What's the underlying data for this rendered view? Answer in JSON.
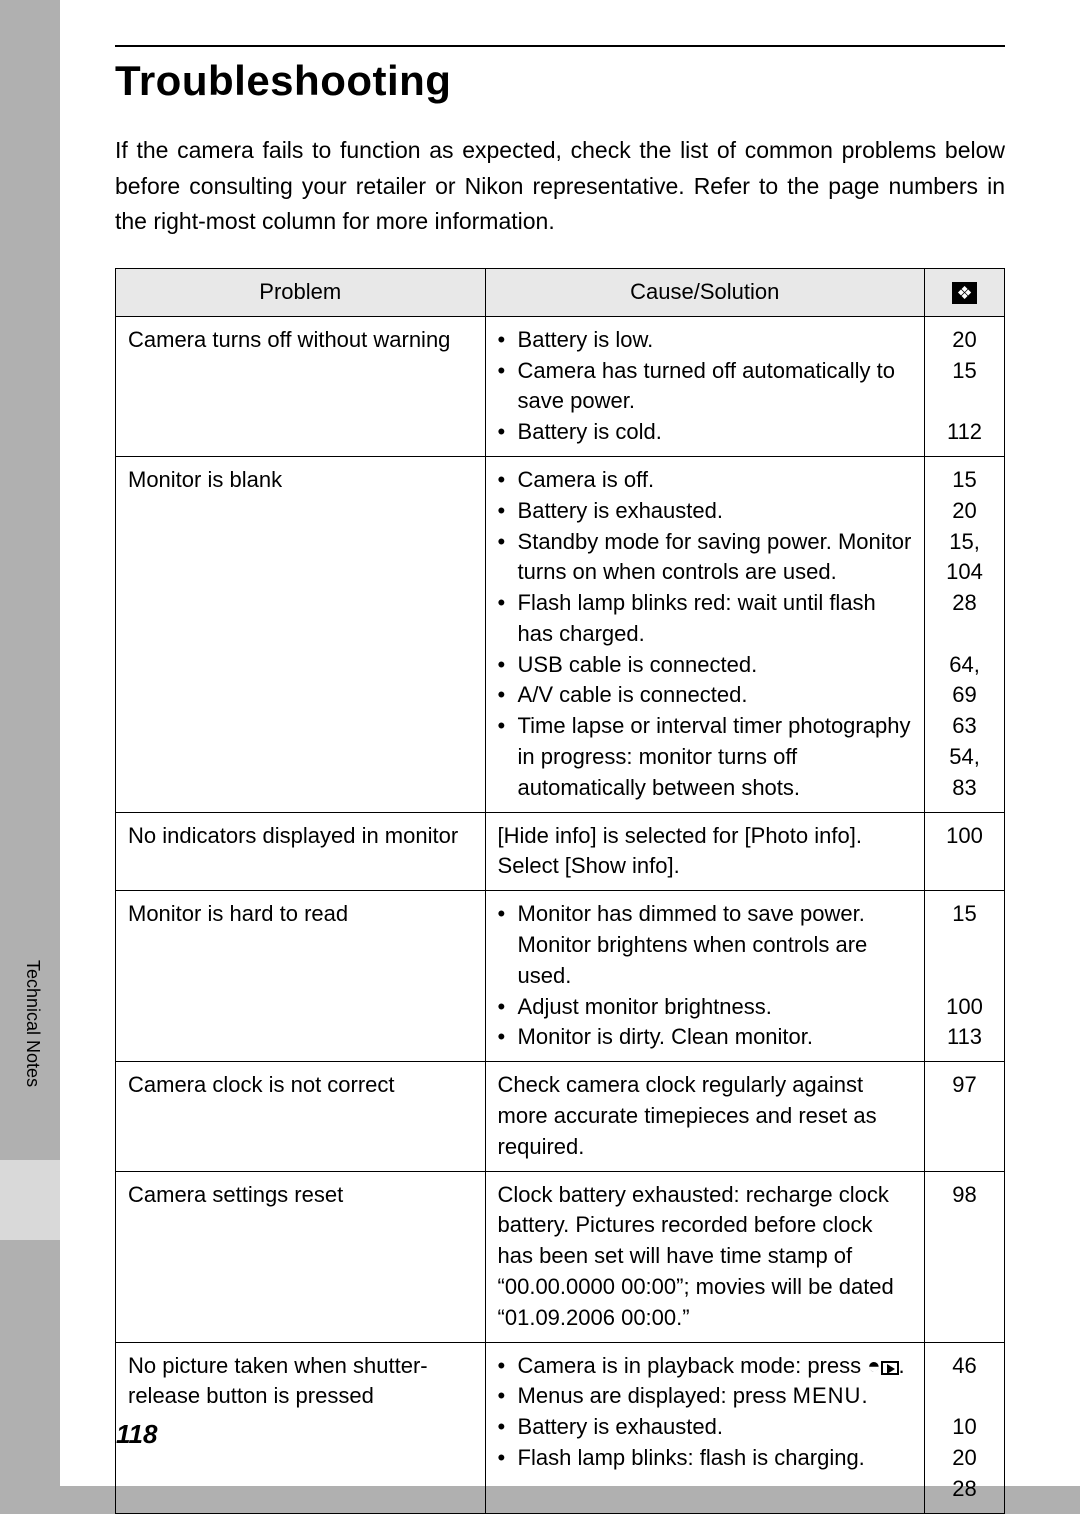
{
  "background_color": "#b0b0b0",
  "page_color": "#ffffff",
  "heading": "Troubleshooting",
  "intro": "If the camera fails to function as expected, check the list of common problems below before consulting your retailer or Nikon representative. Refer to the page numbers in the right-most column for more information.",
  "side_label": "Technical Notes",
  "page_number": "118",
  "table": {
    "header_bg": "#e8e8e8",
    "border_color": "#000000",
    "columns": {
      "problem": "Problem",
      "cause": "Cause/Solution",
      "ref_icon": "⬚"
    },
    "rows": [
      {
        "problem": "Camera turns off without warning",
        "cause_type": "list",
        "cause": [
          "Battery is low.",
          "Camera has turned off automatically to save power.",
          "Battery is cold."
        ],
        "ref": "20\n15\n\n112"
      },
      {
        "problem": "Monitor is blank",
        "cause_type": "list",
        "cause": [
          "Camera is off.",
          "Battery is exhausted.",
          "Standby mode for saving power. Monitor turns on when controls are used.",
          "Flash lamp blinks red: wait until flash has charged.",
          "USB cable is connected.",
          "A/V cable is connected.",
          "Time lapse or interval timer photography in progress: monitor turns off automatically between shots."
        ],
        "ref": "15\n20\n15,\n104\n28\n\n64, 69\n63\n54, 83"
      },
      {
        "problem": "No indicators displayed in monitor",
        "cause_type": "text",
        "cause": "[Hide info] is selected for [Photo info]. Select [Show info].",
        "ref": "100"
      },
      {
        "problem": "Monitor is hard to read",
        "cause_type": "list",
        "cause": [
          "Monitor has dimmed to save power. Monitor brightens when controls are used.",
          "Adjust monitor brightness.",
          "Monitor is dirty. Clean monitor."
        ],
        "ref": "15\n\n\n100\n113"
      },
      {
        "problem": "Camera clock is not correct",
        "cause_type": "text",
        "cause": "Check camera clock regularly against more accurate timepieces and reset as required.",
        "ref": "97"
      },
      {
        "problem": "Camera settings reset",
        "cause_type": "text",
        "cause": "Clock battery exhausted: recharge clock battery. Pictures recorded before clock has been set will have time stamp of “00.00.0000 00:00”; movies will be dated “01.09.2006 00:00.”",
        "ref": "98"
      },
      {
        "problem": "No picture taken when shutter-release button is pressed",
        "cause_type": "list_special",
        "cause": [
          {
            "text_before": "Camera is in playback mode: press ",
            "icons": "cam_play",
            "text_after": "."
          },
          {
            "text_before": "Menus are displayed: press ",
            "icons": "menu",
            "text_after": "."
          },
          {
            "text_before": "Battery is exhausted.",
            "icons": "",
            "text_after": ""
          },
          {
            "text_before": "Flash lamp blinks: flash is charging.",
            "icons": "",
            "text_after": ""
          }
        ],
        "ref": "46\n\n10\n20\n28"
      }
    ]
  }
}
